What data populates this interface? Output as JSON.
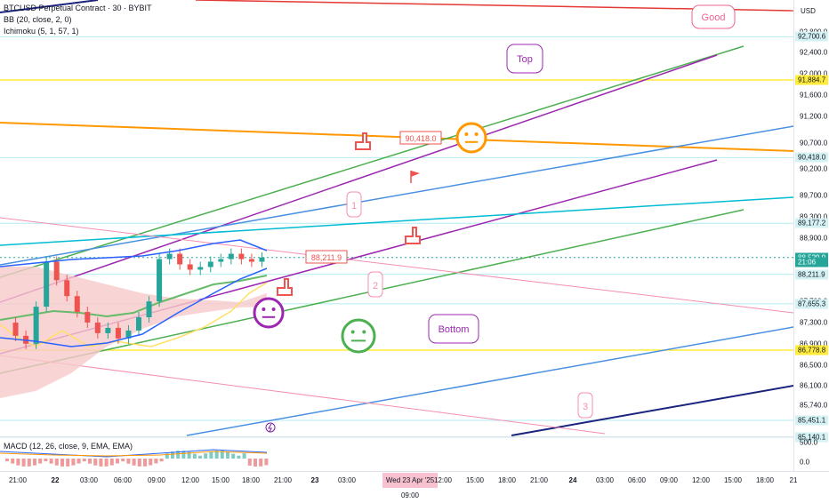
{
  "header": {
    "symbol_line": "BTCUSD Perpetual Contract · 30 · BYBIT",
    "bb_line": "BB (20, close, 2, 0)",
    "ichimoku_line": "Ichimoku (5, 1, 57, 1)",
    "currency": "USD"
  },
  "macd": {
    "label": "MACD (12, 26, close, 9, EMA, EMA)"
  },
  "price_axis": {
    "ticks": [
      "92,800.0",
      "92,400.0",
      "92,000.0",
      "91,600.0",
      "91,200.0",
      "90,700.0",
      "90,200.0",
      "89,700.0",
      "89,300.0",
      "88,900.0",
      "88,500.0",
      "87,700.0",
      "87,300.0",
      "86,900.0",
      "86,500.0",
      "86,100.0",
      "85,740.0"
    ],
    "tags": [
      {
        "text": "92,700.6",
        "bg": "#d4f1f4",
        "fg": "#131722",
        "y": 92700.6
      },
      {
        "text": "91,884.7",
        "bg": "#ffeb3b",
        "fg": "#131722",
        "y": 91884.7
      },
      {
        "text": "90,418.0",
        "bg": "#d4f1f4",
        "fg": "#131722",
        "y": 90418.0
      },
      {
        "text": "89,177.2",
        "bg": "#d4f1f4",
        "fg": "#131722",
        "y": 89177.2
      },
      {
        "text": "88,529.9",
        "bg": "#26a69a",
        "fg": "#ffffff",
        "y": 88529.9
      },
      {
        "text": "21:06",
        "bg": "#26a69a",
        "fg": "#ffffff",
        "y": 88440
      },
      {
        "text": "88,211.9",
        "bg": "#d4f1f4",
        "fg": "#131722",
        "y": 88211.9
      },
      {
        "text": "87,655.3",
        "bg": "#d4f1f4",
        "fg": "#131722",
        "y": 87655.3
      },
      {
        "text": "86,778.8",
        "bg": "#ffeb3b",
        "fg": "#131722",
        "y": 86778.8
      },
      {
        "text": "85,451.1",
        "bg": "#d4f1f4",
        "fg": "#131722",
        "y": 85451.1
      },
      {
        "text": "85,140.1",
        "bg": "#d4f1f4",
        "fg": "#131722",
        "y": 85140.1
      }
    ],
    "macd_ticks": [
      "500.0",
      "0.0"
    ]
  },
  "time_axis": {
    "labels": [
      {
        "t": "21:00",
        "b": false
      },
      {
        "t": "22",
        "b": true
      },
      {
        "t": "03:00",
        "b": false
      },
      {
        "t": "06:00",
        "b": false
      },
      {
        "t": "09:00",
        "b": false
      },
      {
        "t": "12:00",
        "b": false
      },
      {
        "t": "15:00",
        "b": false
      },
      {
        "t": "18:00",
        "b": false
      },
      {
        "t": "21:00",
        "b": false
      },
      {
        "t": "23",
        "b": true
      },
      {
        "t": "03:00",
        "b": false
      },
      {
        "t": "06:00",
        "b": false
      },
      {
        "t": "09:00",
        "b": false
      },
      {
        "t": "12:00",
        "b": false
      },
      {
        "t": "15:00",
        "b": false
      },
      {
        "t": "18:00",
        "b": false
      },
      {
        "t": "21:00",
        "b": false
      },
      {
        "t": "24",
        "b": true
      },
      {
        "t": "03:00",
        "b": false
      },
      {
        "t": "06:00",
        "b": false
      },
      {
        "t": "09:00",
        "b": false
      },
      {
        "t": "12:00",
        "b": false
      },
      {
        "t": "15:00",
        "b": false
      },
      {
        "t": "18:00",
        "b": false
      },
      {
        "t": "21",
        "b": false
      }
    ],
    "cursor_label": "Wed 23 Apr '25  09:00"
  },
  "annotations": {
    "good": "Good",
    "top": "Top",
    "bottom": "Bottom",
    "price_1": "90,418.0",
    "price_2": "88,211.9",
    "wave_1": "1",
    "wave_2": "2",
    "wave_3": "3"
  },
  "colors": {
    "up": "#26a69a",
    "down": "#ef5350",
    "bb": "#2962ff",
    "ichimoku_cloud": "#f8c9c9",
    "green_line": "#4caf50",
    "purple_line": "#9c27b0",
    "blue_line": "#4a90e2",
    "cyan_line": "#00bcd4",
    "orange_line": "#ff9800",
    "red_line": "#e53935",
    "navy_line": "#1a237e",
    "yellow_line": "#ffeb3b",
    "pink_line": "#f48fb1"
  },
  "chart_data": {
    "type": "line",
    "title": "BTCUSD Perpetual Contract · 30 · BYBIT",
    "ylabel": "USD",
    "ylim": [
      85000,
      92900
    ],
    "horizontal_levels": [
      92700.6,
      91884.7,
      90418.0,
      89177.2,
      88211.9,
      87655.3,
      86778.8,
      85451.1,
      85140.1
    ],
    "last_price": 88529.9,
    "series": [
      {
        "name": "BTCUSD",
        "values": [
          87300,
          87050,
          86900,
          87600,
          88450,
          88100,
          87800,
          87500,
          87300,
          87100,
          87200,
          87000,
          87150,
          87400,
          87700,
          88500,
          88600,
          88400,
          88300,
          88350,
          88450,
          88500,
          88600,
          88500,
          88450,
          88530
        ]
      }
    ]
  }
}
